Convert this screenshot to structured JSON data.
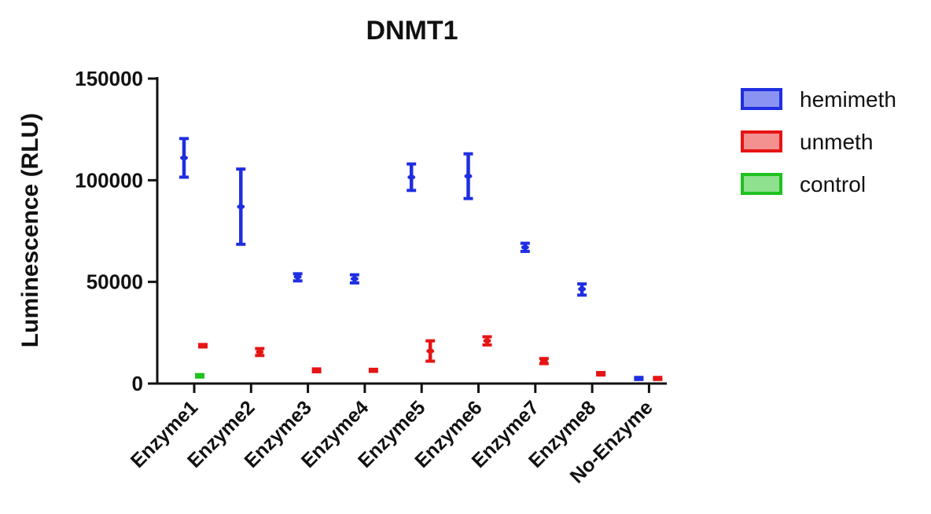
{
  "chart_data": {
    "type": "scatter",
    "title": "DNMT1",
    "xlabel": "",
    "ylabel": "Luminescence (RLU)",
    "ylim": [
      0,
      150000
    ],
    "yticks": [
      0,
      50000,
      100000,
      150000
    ],
    "ytick_labels": [
      "0",
      "50000",
      "100000",
      "150000"
    ],
    "categories": [
      "Enzyme1",
      "Enzyme2",
      "Enzyme3",
      "Enzyme4",
      "Enzyme5",
      "Enzyme6",
      "Enzyme7",
      "Enzyme8",
      "No-Enzyme"
    ],
    "legend_position": "right",
    "series": [
      {
        "name": "hemimeth",
        "color": "#1f2ee0",
        "fill": "#8a93f2",
        "points": [
          {
            "category": "Enzyme1",
            "mean": 111000,
            "low": 101500,
            "high": 120500
          },
          {
            "category": "Enzyme2",
            "mean": 87000,
            "low": 68500,
            "high": 105500
          },
          {
            "category": "Enzyme3",
            "mean": 52500,
            "low": 50500,
            "high": 54000
          },
          {
            "category": "Enzyme4",
            "mean": 51500,
            "low": 49500,
            "high": 53500
          },
          {
            "category": "Enzyme5",
            "mean": 101500,
            "low": 95000,
            "high": 108000
          },
          {
            "category": "Enzyme6",
            "mean": 102000,
            "low": 91000,
            "high": 113000
          },
          {
            "category": "Enzyme7",
            "mean": 67000,
            "low": 65000,
            "high": 69000
          },
          {
            "category": "Enzyme8",
            "mean": 46500,
            "low": 43500,
            "high": 49000
          },
          {
            "category": "No-Enzyme",
            "mean": 2500,
            "low": 2000,
            "high": 3000
          }
        ]
      },
      {
        "name": "unmeth",
        "color": "#e61414",
        "fill": "#f39090",
        "points": [
          {
            "category": "Enzyme1",
            "mean": 18500,
            "low": 18000,
            "high": 19200
          },
          {
            "category": "Enzyme2",
            "mean": 15500,
            "low": 13800,
            "high": 17200
          },
          {
            "category": "Enzyme3",
            "mean": 6500,
            "low": 5800,
            "high": 7200
          },
          {
            "category": "Enzyme4",
            "mean": 6500,
            "low": 6000,
            "high": 7000
          },
          {
            "category": "Enzyme5",
            "mean": 16000,
            "low": 11000,
            "high": 21000
          },
          {
            "category": "Enzyme6",
            "mean": 21000,
            "low": 19000,
            "high": 23000
          },
          {
            "category": "Enzyme7",
            "mean": 11000,
            "low": 9800,
            "high": 12300
          },
          {
            "category": "Enzyme8",
            "mean": 4800,
            "low": 4200,
            "high": 5400
          },
          {
            "category": "No-Enzyme",
            "mean": 2500,
            "low": 2000,
            "high": 3000
          }
        ]
      },
      {
        "name": "control",
        "color": "#1ec21e",
        "fill": "#8fe08f",
        "points": [
          {
            "category": "Enzyme1",
            "mean": 3800,
            "low": 3200,
            "high": 4400
          }
        ]
      }
    ]
  }
}
